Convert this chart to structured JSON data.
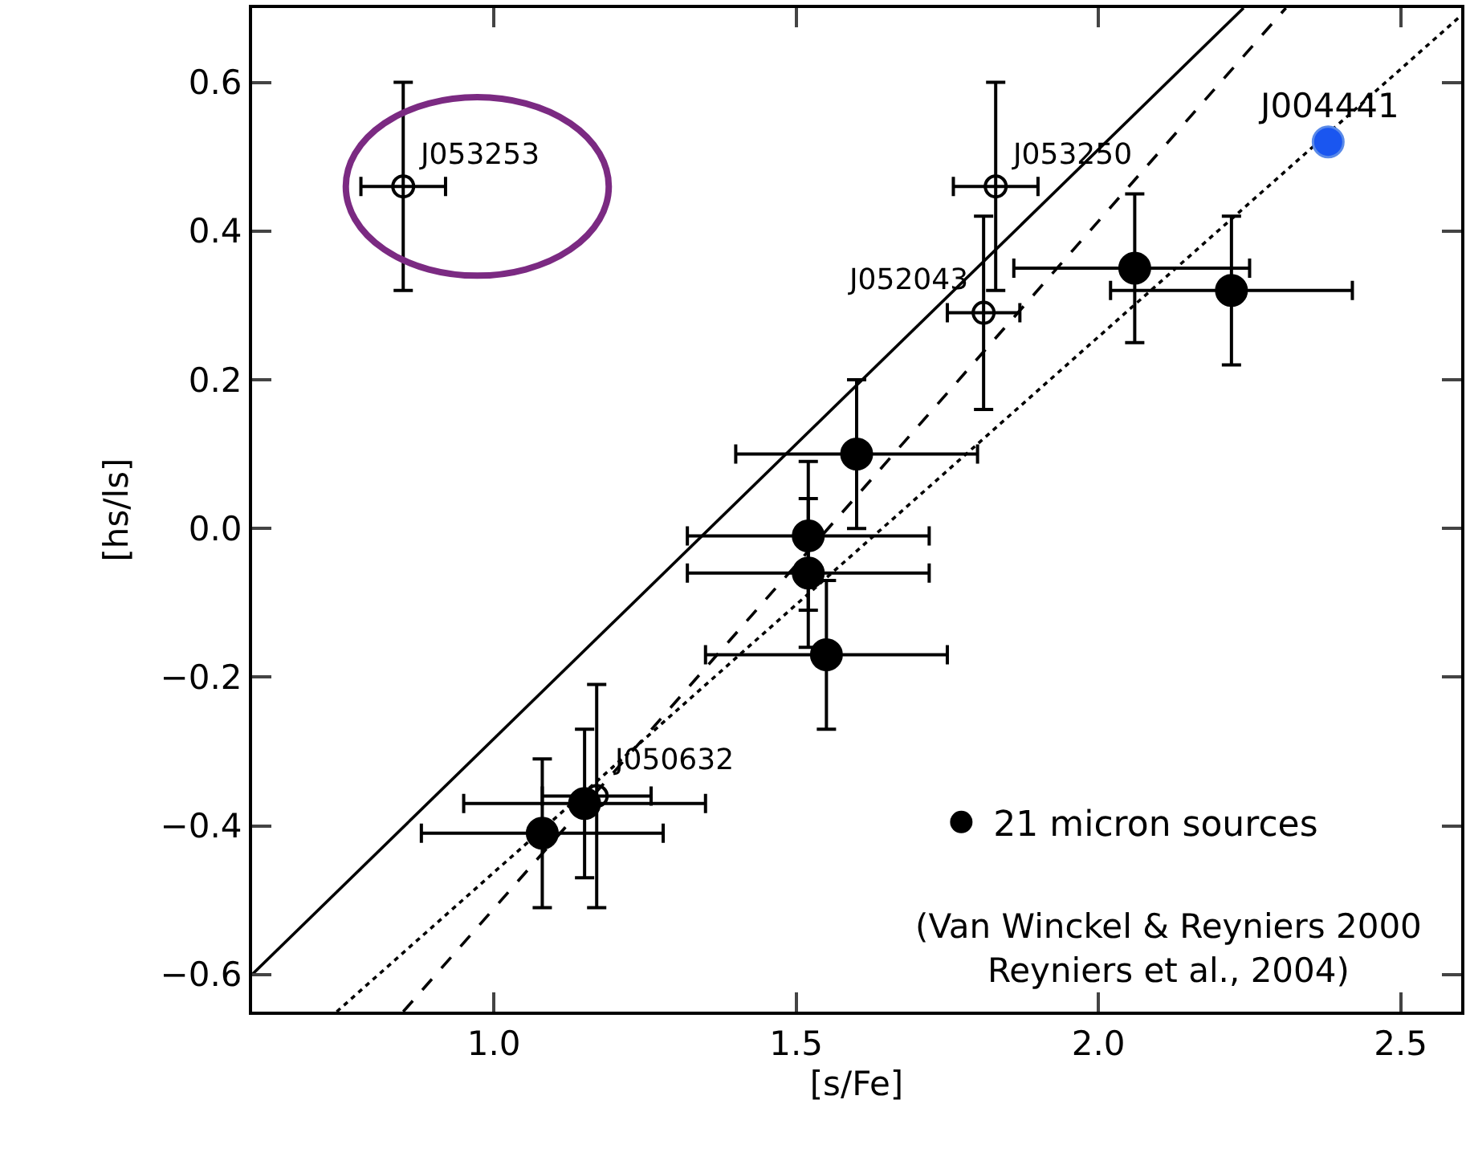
{
  "chart_data": {
    "type": "scatter",
    "xlabel": "[s/Fe]",
    "ylabel": "[hs/ls]",
    "xlim": [
      0.6,
      2.6
    ],
    "ylim": [
      -0.65,
      0.7
    ],
    "xticks": [
      {
        "value": 1,
        "label": "1.0"
      },
      {
        "value": 1.5,
        "label": "1.5"
      },
      {
        "value": 2,
        "label": "2.0"
      },
      {
        "value": 2.5,
        "label": "2.5"
      }
    ],
    "yticks": [
      {
        "value": -0.6,
        "label": "−0.6"
      },
      {
        "value": -0.4,
        "label": "−0.4"
      },
      {
        "value": -0.2,
        "label": "−0.2"
      },
      {
        "value": 0,
        "label": "0.0"
      },
      {
        "value": 0.2,
        "label": "0.2"
      },
      {
        "value": 0.4,
        "label": "0.4"
      },
      {
        "value": 0.6,
        "label": "0.6"
      }
    ],
    "grid": false,
    "legend": "bottom right",
    "marker": "circle",
    "series": [
      {
        "type": "line",
        "color": "#000000",
        "line_style": "solid",
        "marker": "none",
        "x": [
          0.6,
          2.24
        ],
        "values": [
          -0.6,
          0.7
        ]
      },
      {
        "type": "line",
        "color": "#000000",
        "line_style": "dashed",
        "marker": "none",
        "x": [
          0.85,
          2.31
        ],
        "values": [
          -0.65,
          0.7
        ]
      },
      {
        "type": "line",
        "color": "#000000",
        "line_style": "dotted",
        "marker": "none",
        "x": [
          0.74,
          2.6
        ],
        "values": [
          -0.65,
          0.69
        ]
      },
      {
        "name": "21 micron sources",
        "color": "#000000",
        "x": [
          2.06,
          2.22,
          1.6,
          1.52,
          1.52,
          1.55,
          1.08,
          1.15
        ],
        "values": [
          0.35,
          0.32,
          0.1,
          -0.01,
          -0.06,
          -0.17,
          -0.41,
          -0.37
        ],
        "errors": [
          [
            0.25,
            0.45
          ],
          [
            0.22,
            0.42
          ],
          [
            0.0,
            0.2
          ],
          [
            -0.11,
            0.09
          ],
          [
            -0.16,
            0.04
          ],
          [
            -0.27,
            -0.07
          ],
          [
            -0.51,
            -0.31
          ],
          [
            -0.47,
            -0.27
          ]
        ],
        "xerrors": [
          [
            1.86,
            2.25
          ],
          [
            2.02,
            2.42
          ],
          [
            1.4,
            1.8
          ],
          [
            1.32,
            1.72
          ],
          [
            1.32,
            1.72
          ],
          [
            1.35,
            1.75
          ],
          [
            0.88,
            1.28
          ],
          [
            0.95,
            1.35
          ]
        ]
      },
      {
        "color": "#000000",
        "x": [
          0.85,
          1.83,
          1.81,
          1.17
        ],
        "values": [
          0.46,
          0.46,
          0.29,
          -0.36
        ],
        "errors": [
          [
            0.32,
            0.6
          ],
          [
            0.32,
            0.6
          ],
          [
            0.16,
            0.42
          ],
          [
            -0.51,
            -0.21
          ]
        ],
        "xerrors": [
          [
            0.78,
            0.92
          ],
          [
            1.76,
            1.9
          ],
          [
            1.75,
            1.87
          ],
          [
            1.08,
            1.26
          ]
        ]
      },
      {
        "color": "#1a56f0",
        "x": [
          2.38
        ],
        "values": [
          0.52
        ]
      }
    ],
    "annotations": [
      {
        "text": "J053253",
        "x": 0.85,
        "y": 0.46
      },
      {
        "text": "J053250",
        "x": 1.83,
        "y": 0.46
      },
      {
        "text": "J052043",
        "x": 1.81,
        "y": 0.29
      },
      {
        "text": "J050632",
        "x": 1.17,
        "y": -0.36
      },
      {
        "text": "J004441",
        "x": 2.38,
        "y": 0.52
      },
      "(Van Winckel & Reyniers 2000\nReyniers et al., 2004)"
    ]
  }
}
